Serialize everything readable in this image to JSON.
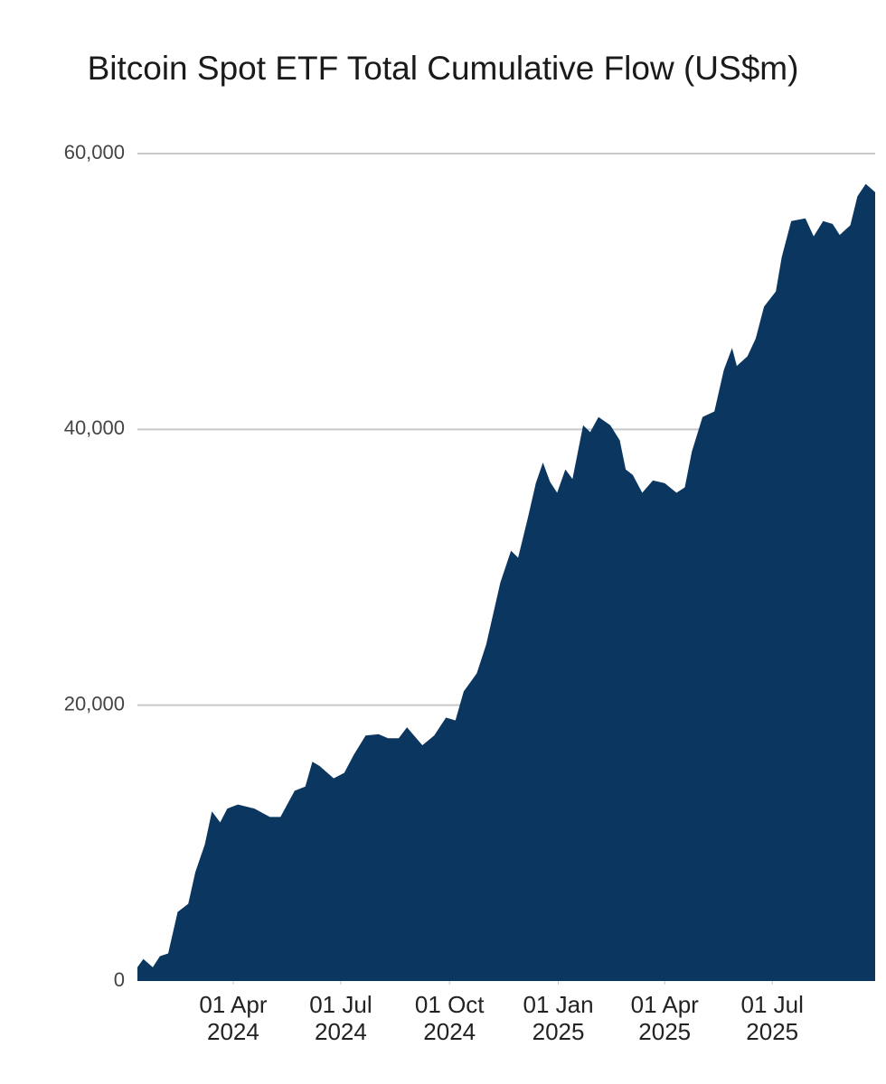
{
  "chart_data": {
    "type": "area",
    "title": "Bitcoin Spot ETF Total Cumulative Flow (US$m)",
    "color": "#0b3660",
    "x": [
      "2024-01-11",
      "2024-01-16",
      "2024-01-24",
      "2024-01-30",
      "2024-02-06",
      "2024-02-14",
      "2024-02-23",
      "2024-02-29",
      "2024-03-08",
      "2024-03-14",
      "2024-03-21",
      "2024-03-27",
      "2024-04-05",
      "2024-04-19",
      "2024-05-02",
      "2024-05-11",
      "2024-05-23",
      "2024-06-01",
      "2024-06-07",
      "2024-06-13",
      "2024-06-25",
      "2024-07-04",
      "2024-07-12",
      "2024-07-22",
      "2024-08-02",
      "2024-08-10",
      "2024-08-19",
      "2024-08-26",
      "2024-09-08",
      "2024-09-18",
      "2024-09-28",
      "2024-10-06",
      "2024-10-13",
      "2024-10-24",
      "2024-11-01",
      "2024-11-05",
      "2024-11-13",
      "2024-11-22",
      "2024-11-28",
      "2024-12-06",
      "2024-12-13",
      "2024-12-19",
      "2024-12-25",
      "2024-12-31",
      "2025-01-07",
      "2025-01-13",
      "2025-01-22",
      "2025-01-28",
      "2025-02-04",
      "2025-02-14",
      "2025-02-22",
      "2025-02-27",
      "2025-03-05",
      "2025-03-13",
      "2025-03-22",
      "2025-04-01",
      "2025-04-11",
      "2025-04-18",
      "2025-04-24",
      "2025-05-03",
      "2025-05-13",
      "2025-05-21",
      "2025-05-28",
      "2025-06-01",
      "2025-06-10",
      "2025-06-17",
      "2025-06-24",
      "2025-07-04",
      "2025-07-09",
      "2025-07-17",
      "2025-07-29",
      "2025-08-05",
      "2025-08-13",
      "2025-08-21",
      "2025-08-27",
      "2025-09-05",
      "2025-09-11",
      "2025-09-18",
      "2025-09-22",
      "2025-09-26"
    ],
    "values": [
      1000,
      1600,
      1000,
      1800,
      2000,
      5000,
      5600,
      7900,
      9900,
      12300,
      11500,
      12500,
      12800,
      12500,
      11900,
      11900,
      13800,
      14100,
      15900,
      15600,
      14700,
      15100,
      16400,
      17800,
      17900,
      17600,
      17600,
      18400,
      17100,
      17800,
      19100,
      18900,
      21000,
      22300,
      24400,
      25900,
      28900,
      31200,
      30700,
      33500,
      36100,
      37600,
      36200,
      35400,
      37100,
      36400,
      40300,
      39800,
      40900,
      40300,
      39200,
      37100,
      36700,
      35400,
      36300,
      36100,
      35400,
      35800,
      38400,
      40900,
      41300,
      44300,
      45900,
      44600,
      45300,
      46600,
      48900,
      50000,
      52500,
      55100,
      55300,
      54000,
      55100,
      54900,
      54100,
      54800,
      56900,
      57800,
      57500,
      57200
    ],
    "xlim": [
      "2024-01-11",
      "2025-09-26"
    ],
    "xticks": [
      {
        "value": "2024-04-01",
        "label": "01 Apr 2024"
      },
      {
        "value": "2024-07-01",
        "label": "01 Jul 2024"
      },
      {
        "value": "2024-10-01",
        "label": "01 Oct 2024"
      },
      {
        "value": "2025-01-01",
        "label": "01 Jan 2025"
      },
      {
        "value": "2025-04-01",
        "label": "01 Apr 2025"
      },
      {
        "value": "2025-07-01",
        "label": "01 Jul 2025"
      }
    ],
    "ylim": [
      0,
      60000
    ],
    "yticks": [
      0,
      {
        "value": 20000,
        "label": "20,000"
      },
      {
        "value": 40000,
        "label": "40,000"
      },
      {
        "value": 60000,
        "label": "60,000"
      }
    ],
    "grid": true
  }
}
